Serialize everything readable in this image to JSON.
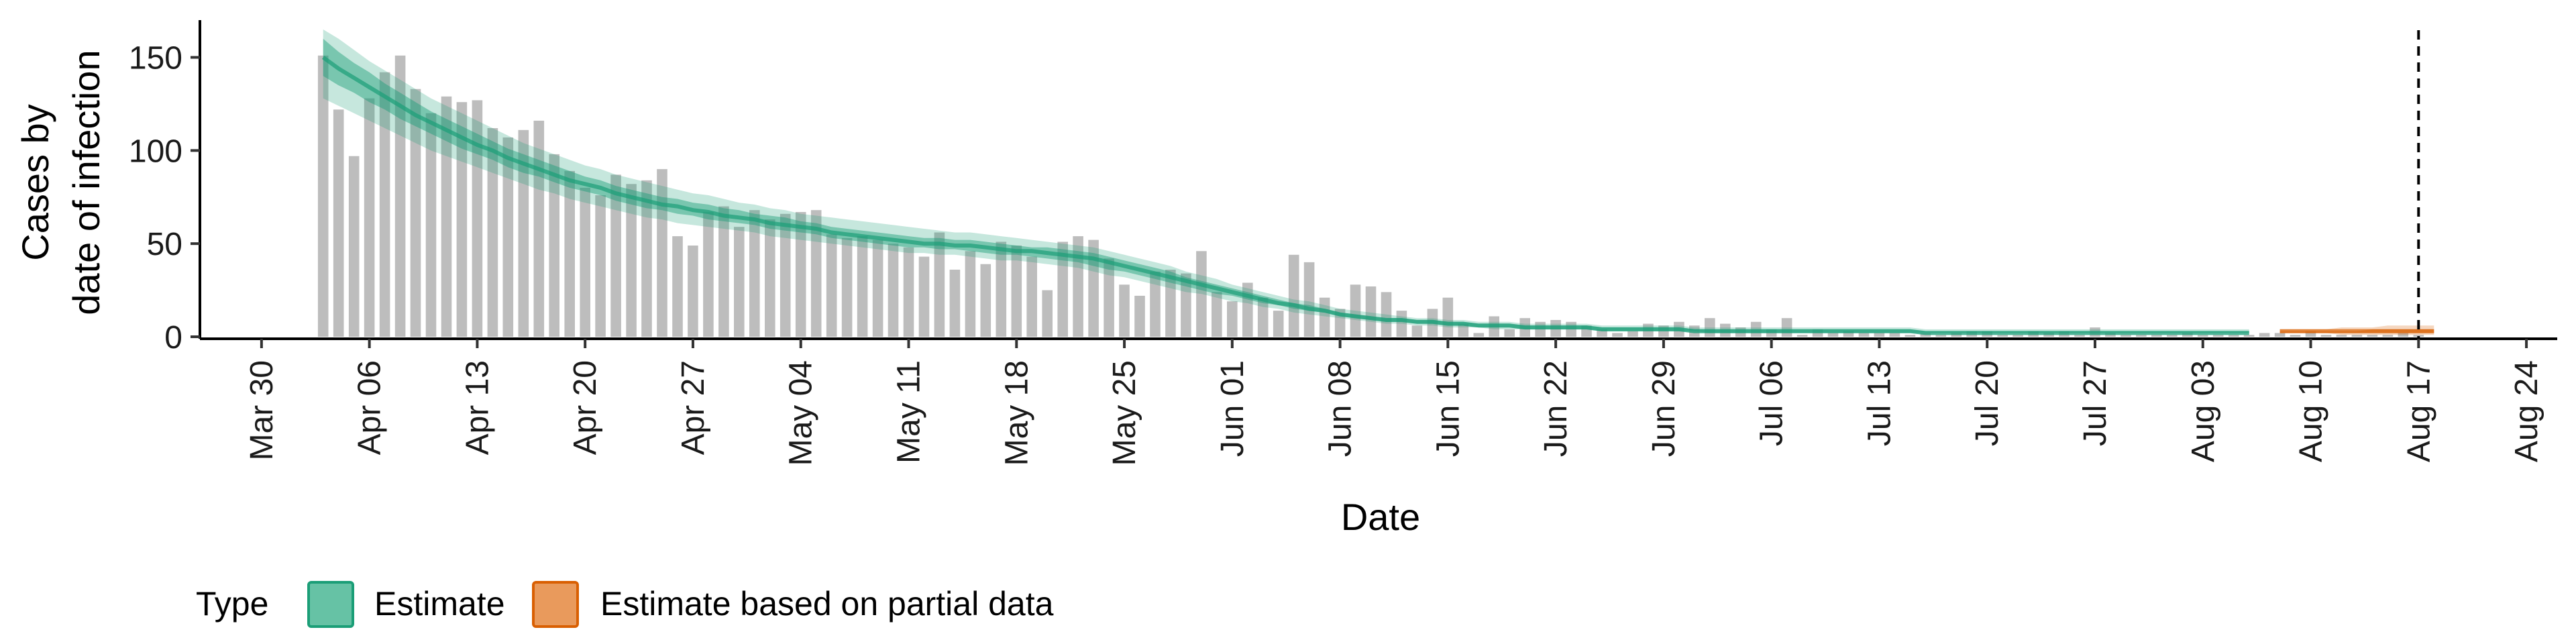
{
  "chart_data": {
    "type": "bar",
    "xlabel": "Date",
    "ylabel_lines": [
      "Cases by",
      "date of infection"
    ],
    "ylim": [
      0,
      170
    ],
    "y_ticks": [
      0,
      50,
      100,
      150
    ],
    "x_tick_labels": [
      "Mar 30",
      "Apr 06",
      "Apr 13",
      "Apr 20",
      "Apr 27",
      "May 04",
      "May 11",
      "May 18",
      "May 25",
      "Jun 01",
      "Jun 08",
      "Jun 15",
      "Jun 22",
      "Jun 29",
      "Jul 06",
      "Jul 13",
      "Jul 20",
      "Jul 27",
      "Aug 03",
      "Aug 10",
      "Aug 17",
      "Aug 24"
    ],
    "x_tick_dates": [
      "2020-03-30",
      "2020-04-06",
      "2020-04-13",
      "2020-04-20",
      "2020-04-27",
      "2020-05-04",
      "2020-05-11",
      "2020-05-18",
      "2020-05-25",
      "2020-06-01",
      "2020-06-08",
      "2020-06-15",
      "2020-06-22",
      "2020-06-29",
      "2020-07-06",
      "2020-07-13",
      "2020-07-20",
      "2020-07-27",
      "2020-08-03",
      "2020-08-10",
      "2020-08-17",
      "2020-08-24"
    ],
    "x_range": [
      "2020-03-26",
      "2020-08-26"
    ],
    "bars": {
      "start_date": "2020-04-03",
      "values": [
        151,
        122,
        97,
        128,
        142,
        151,
        133,
        120,
        129,
        126,
        127,
        112,
        107,
        111,
        116,
        98,
        89,
        80,
        76,
        87,
        82,
        84,
        90,
        54,
        49,
        67,
        70,
        59,
        68,
        63,
        66,
        67,
        68,
        55,
        53,
        54,
        52,
        50,
        48,
        43,
        56,
        36,
        46,
        39,
        51,
        49,
        43,
        25,
        51,
        54,
        52,
        42,
        28,
        22,
        35,
        36,
        34,
        46,
        24,
        19,
        29,
        21,
        14,
        44,
        40,
        21,
        15,
        28,
        27,
        24,
        14,
        6,
        15,
        21,
        7,
        2,
        11,
        4,
        10,
        8,
        9,
        8,
        6,
        4,
        2,
        3,
        7,
        6,
        8,
        6,
        10,
        7,
        5,
        8,
        4,
        10,
        1,
        4,
        2,
        3,
        2,
        2,
        2,
        1,
        2,
        1,
        2,
        3,
        3,
        1,
        1,
        3,
        2,
        3,
        1,
        5,
        2,
        1,
        1,
        1,
        1,
        2,
        1,
        1,
        1,
        1,
        2,
        2,
        1,
        3,
        1,
        1,
        1,
        1,
        1,
        2,
        1
      ]
    },
    "estimate": {
      "start_date": "2020-04-03",
      "median": [
        150,
        144,
        139,
        134,
        129,
        124,
        119,
        115,
        111,
        107,
        103,
        100,
        96,
        93,
        90,
        87,
        84,
        82,
        80,
        77,
        75,
        73,
        71,
        70,
        68,
        67,
        65,
        64,
        63,
        61,
        60,
        59,
        58,
        56,
        55,
        54,
        53,
        52,
        51,
        50,
        50,
        49,
        49,
        48,
        47,
        46,
        46,
        45,
        44,
        43,
        42,
        40,
        38,
        36,
        34,
        32,
        30,
        28,
        26,
        24,
        22,
        20,
        18,
        17,
        15,
        14,
        12,
        11,
        10,
        9,
        9,
        8,
        8,
        7,
        7,
        6,
        6,
        6,
        5,
        5,
        5,
        5,
        5,
        4,
        4,
        4,
        4,
        4,
        4,
        3,
        3,
        3,
        3,
        3,
        3,
        3,
        3,
        3,
        3,
        3,
        3,
        3,
        3,
        3,
        2,
        2,
        2,
        2,
        2,
        2,
        2,
        2,
        2,
        2,
        2,
        2,
        2,
        2,
        2,
        2,
        2,
        2,
        2,
        2,
        2,
        2
      ],
      "band_50": [
        [
          140,
          135,
          131,
          126,
          122,
          117,
          113,
          109,
          105,
          101,
          98,
          95,
          91,
          88,
          86,
          83,
          80,
          78,
          76,
          73,
          71,
          69,
          68,
          66,
          65,
          63,
          62,
          61,
          60,
          58,
          57,
          56,
          55,
          53,
          52,
          51,
          50,
          49,
          48,
          48,
          47,
          47,
          46,
          45,
          44,
          44,
          43,
          42,
          41,
          40,
          38,
          36,
          35,
          33,
          31,
          29,
          27,
          25,
          23,
          22,
          20,
          18,
          17,
          15,
          14,
          13,
          11,
          10,
          9,
          8,
          8,
          7,
          7,
          6,
          6,
          5,
          5,
          5,
          4,
          4,
          4,
          4,
          4,
          3,
          3,
          3,
          3,
          3,
          3,
          3,
          2,
          2,
          2,
          2,
          2,
          2,
          2,
          2,
          2,
          2,
          2,
          2,
          2,
          2,
          2,
          2,
          2,
          2,
          2,
          2,
          2,
          2,
          2,
          2,
          2,
          2,
          2,
          2,
          2,
          2,
          2,
          2,
          2,
          2,
          2,
          2
        ],
        [
          160,
          153,
          147,
          142,
          136,
          131,
          126,
          121,
          117,
          113,
          109,
          105,
          101,
          98,
          95,
          92,
          89,
          86,
          84,
          81,
          79,
          77,
          75,
          74,
          72,
          71,
          69,
          68,
          66,
          65,
          64,
          62,
          61,
          59,
          58,
          57,
          56,
          55,
          54,
          53,
          53,
          52,
          52,
          51,
          50,
          49,
          48,
          48,
          47,
          46,
          45,
          43,
          41,
          39,
          37,
          35,
          32,
          30,
          28,
          26,
          24,
          22,
          20,
          18,
          17,
          15,
          13,
          12,
          11,
          10,
          10,
          9,
          9,
          8,
          8,
          7,
          7,
          7,
          6,
          6,
          6,
          6,
          6,
          5,
          5,
          5,
          5,
          5,
          5,
          4,
          4,
          4,
          4,
          4,
          4,
          4,
          4,
          4,
          4,
          4,
          4,
          4,
          4,
          4,
          3,
          3,
          3,
          3,
          3,
          3,
          3,
          3,
          3,
          3,
          3,
          3,
          3,
          3,
          3,
          3,
          3,
          3,
          3,
          3,
          3,
          3
        ]
      ],
      "band_90": [
        [
          128,
          124,
          120,
          116,
          112,
          108,
          104,
          100,
          97,
          94,
          91,
          88,
          85,
          82,
          79,
          77,
          74,
          72,
          70,
          68,
          66,
          64,
          63,
          61,
          60,
          59,
          58,
          57,
          56,
          54,
          53,
          52,
          51,
          50,
          49,
          48,
          47,
          46,
          45,
          45,
          44,
          44,
          43,
          42,
          41,
          41,
          40,
          39,
          38,
          37,
          35,
          33,
          32,
          30,
          28,
          26,
          24,
          23,
          21,
          19,
          18,
          16,
          15,
          13,
          12,
          11,
          10,
          9,
          8,
          7,
          7,
          6,
          6,
          5,
          5,
          5,
          4,
          4,
          4,
          4,
          4,
          4,
          4,
          3,
          3,
          3,
          3,
          3,
          3,
          2,
          2,
          2,
          2,
          2,
          2,
          2,
          2,
          2,
          2,
          2,
          2,
          2,
          2,
          2,
          1,
          1,
          1,
          1,
          1,
          1,
          1,
          1,
          1,
          1,
          1,
          1,
          1,
          1,
          1,
          1,
          1,
          1,
          1,
          1,
          1,
          1
        ],
        [
          165,
          160,
          154,
          148,
          143,
          138,
          133,
          128,
          124,
          120,
          116,
          112,
          108,
          104,
          101,
          98,
          95,
          92,
          90,
          87,
          85,
          83,
          81,
          79,
          77,
          76,
          74,
          72,
          71,
          69,
          68,
          66,
          65,
          64,
          63,
          62,
          61,
          60,
          59,
          58,
          57,
          56,
          56,
          55,
          54,
          53,
          52,
          51,
          50,
          49,
          48,
          46,
          44,
          42,
          40,
          38,
          35,
          33,
          31,
          28,
          26,
          24,
          22,
          20,
          19,
          17,
          15,
          14,
          13,
          12,
          11,
          10,
          10,
          9,
          9,
          8,
          8,
          8,
          7,
          7,
          7,
          7,
          7,
          6,
          6,
          6,
          6,
          6,
          6,
          5,
          5,
          5,
          5,
          5,
          5,
          5,
          5,
          5,
          5,
          5,
          5,
          5,
          5,
          5,
          4,
          4,
          4,
          4,
          4,
          4,
          4,
          4,
          4,
          4,
          4,
          4,
          4,
          4,
          4,
          4,
          4,
          4,
          4,
          4,
          4,
          4
        ]
      ]
    },
    "partial_estimate": {
      "start_date": "2020-08-08",
      "median": [
        3,
        3,
        3,
        3,
        3,
        3,
        3,
        3,
        3,
        3,
        3
      ],
      "band_50": [
        [
          2,
          2,
          2,
          2,
          2,
          2,
          2,
          2,
          2,
          2,
          2
        ],
        [
          3,
          3,
          3,
          3,
          3,
          3,
          4,
          4,
          4,
          4,
          4
        ]
      ],
      "band_90": [
        [
          2,
          2,
          2,
          2,
          1,
          1,
          1,
          1,
          1,
          1,
          1
        ],
        [
          4,
          4,
          4,
          4,
          5,
          5,
          5,
          6,
          6,
          6,
          6
        ]
      ]
    },
    "vline_date": "2020-08-17",
    "legend": {
      "title": "Type",
      "items": [
        {
          "label": "Estimate",
          "color": "#1b9e77"
        },
        {
          "label": "Estimate based on partial data",
          "color": "#d95f02"
        }
      ],
      "placement": "bottom-left"
    },
    "colors": {
      "bar": "#bdbdbd",
      "estimate": "#1b9e77",
      "partial": "#d95f02",
      "legend_estimate_fill": "#66c2a5",
      "legend_partial_fill": "#e99a5c"
    },
    "grid": false
  }
}
